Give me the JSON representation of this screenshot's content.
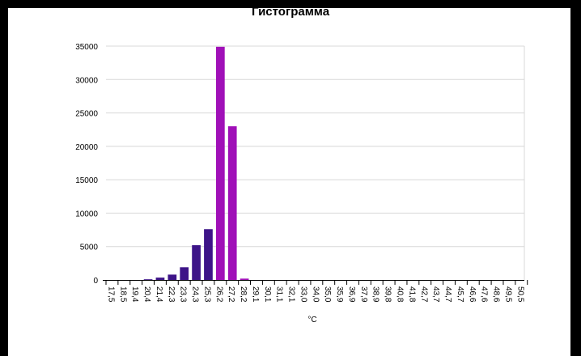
{
  "chart_data": {
    "type": "bar",
    "title": "Гистограмма",
    "xlabel": "°C",
    "ylabel": "",
    "ylim": [
      0,
      35000
    ],
    "yticks": [
      0,
      5000,
      10000,
      15000,
      20000,
      25000,
      30000,
      35000
    ],
    "grid": true,
    "categories": [
      "17,5",
      "18,5",
      "19,4",
      "20,4",
      "21,4",
      "22,3",
      "23,3",
      "24,3",
      "25,3",
      "26,2",
      "27,2",
      "28,2",
      "29,1",
      "30,1",
      "31,1",
      "32,1",
      "33,0",
      "34,0",
      "35,0",
      "35,9",
      "36,9",
      "37,9",
      "38,9",
      "39,8",
      "40,8",
      "41,8",
      "42,7",
      "43,7",
      "44,7",
      "45,7",
      "46,6",
      "47,6",
      "48,6",
      "49,5",
      "50,5"
    ],
    "values": [
      0,
      0,
      0,
      100,
      350,
      800,
      1900,
      5200,
      7600,
      34900,
      23000,
      200,
      0,
      0,
      0,
      0,
      0,
      0,
      0,
      0,
      0,
      0,
      0,
      0,
      0,
      0,
      0,
      0,
      0,
      0,
      0,
      0,
      0,
      0,
      0
    ],
    "colors": {
      "low": "#3d1488",
      "high": "#a010b8",
      "grid": "#d8d8d8",
      "axis": "#000000"
    }
  }
}
